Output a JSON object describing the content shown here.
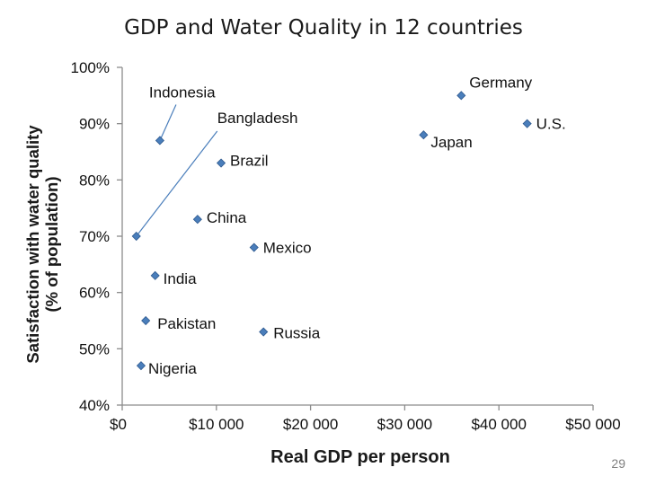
{
  "chart_data": {
    "type": "scatter",
    "title": "GDP and Water Quality in 12 countries",
    "xlabel": "Real GDP per person",
    "ylabel_lines": [
      "Satisfaction with water quality",
      "(% of population)"
    ],
    "xlim": [
      0,
      50000
    ],
    "ylim": [
      40,
      100
    ],
    "x_ticks": [
      {
        "value": 0,
        "label": "$0"
      },
      {
        "value": 10000,
        "label": "$10 000"
      },
      {
        "value": 20000,
        "label": "$20 000"
      },
      {
        "value": 30000,
        "label": "$30 000"
      },
      {
        "value": 40000,
        "label": "$40 000"
      },
      {
        "value": 50000,
        "label": "$50 000"
      }
    ],
    "y_ticks": [
      {
        "value": 40,
        "label": "40%"
      },
      {
        "value": 50,
        "label": "50%"
      },
      {
        "value": 60,
        "label": "60%"
      },
      {
        "value": 70,
        "label": "70%"
      },
      {
        "value": 80,
        "label": "80%"
      },
      {
        "value": 90,
        "label": "90%"
      },
      {
        "value": 100,
        "label": "100%"
      }
    ],
    "marker_color": "#4a7ebb",
    "points": [
      {
        "name": "Indonesia",
        "x": 4000,
        "y": 87
      },
      {
        "name": "Bangladesh",
        "x": 1500,
        "y": 70
      },
      {
        "name": "Brazil",
        "x": 10500,
        "y": 83
      },
      {
        "name": "China",
        "x": 8000,
        "y": 73
      },
      {
        "name": "Mexico",
        "x": 14000,
        "y": 68
      },
      {
        "name": "India",
        "x": 3500,
        "y": 63
      },
      {
        "name": "Pakistan",
        "x": 2500,
        "y": 55
      },
      {
        "name": "Nigeria",
        "x": 2000,
        "y": 47
      },
      {
        "name": "Russia",
        "x": 15000,
        "y": 53
      },
      {
        "name": "Japan",
        "x": 32000,
        "y": 88
      },
      {
        "name": "Germany",
        "x": 36000,
        "y": 95
      },
      {
        "name": "U.S.",
        "x": 43000,
        "y": 90
      }
    ]
  },
  "page_number": "29"
}
